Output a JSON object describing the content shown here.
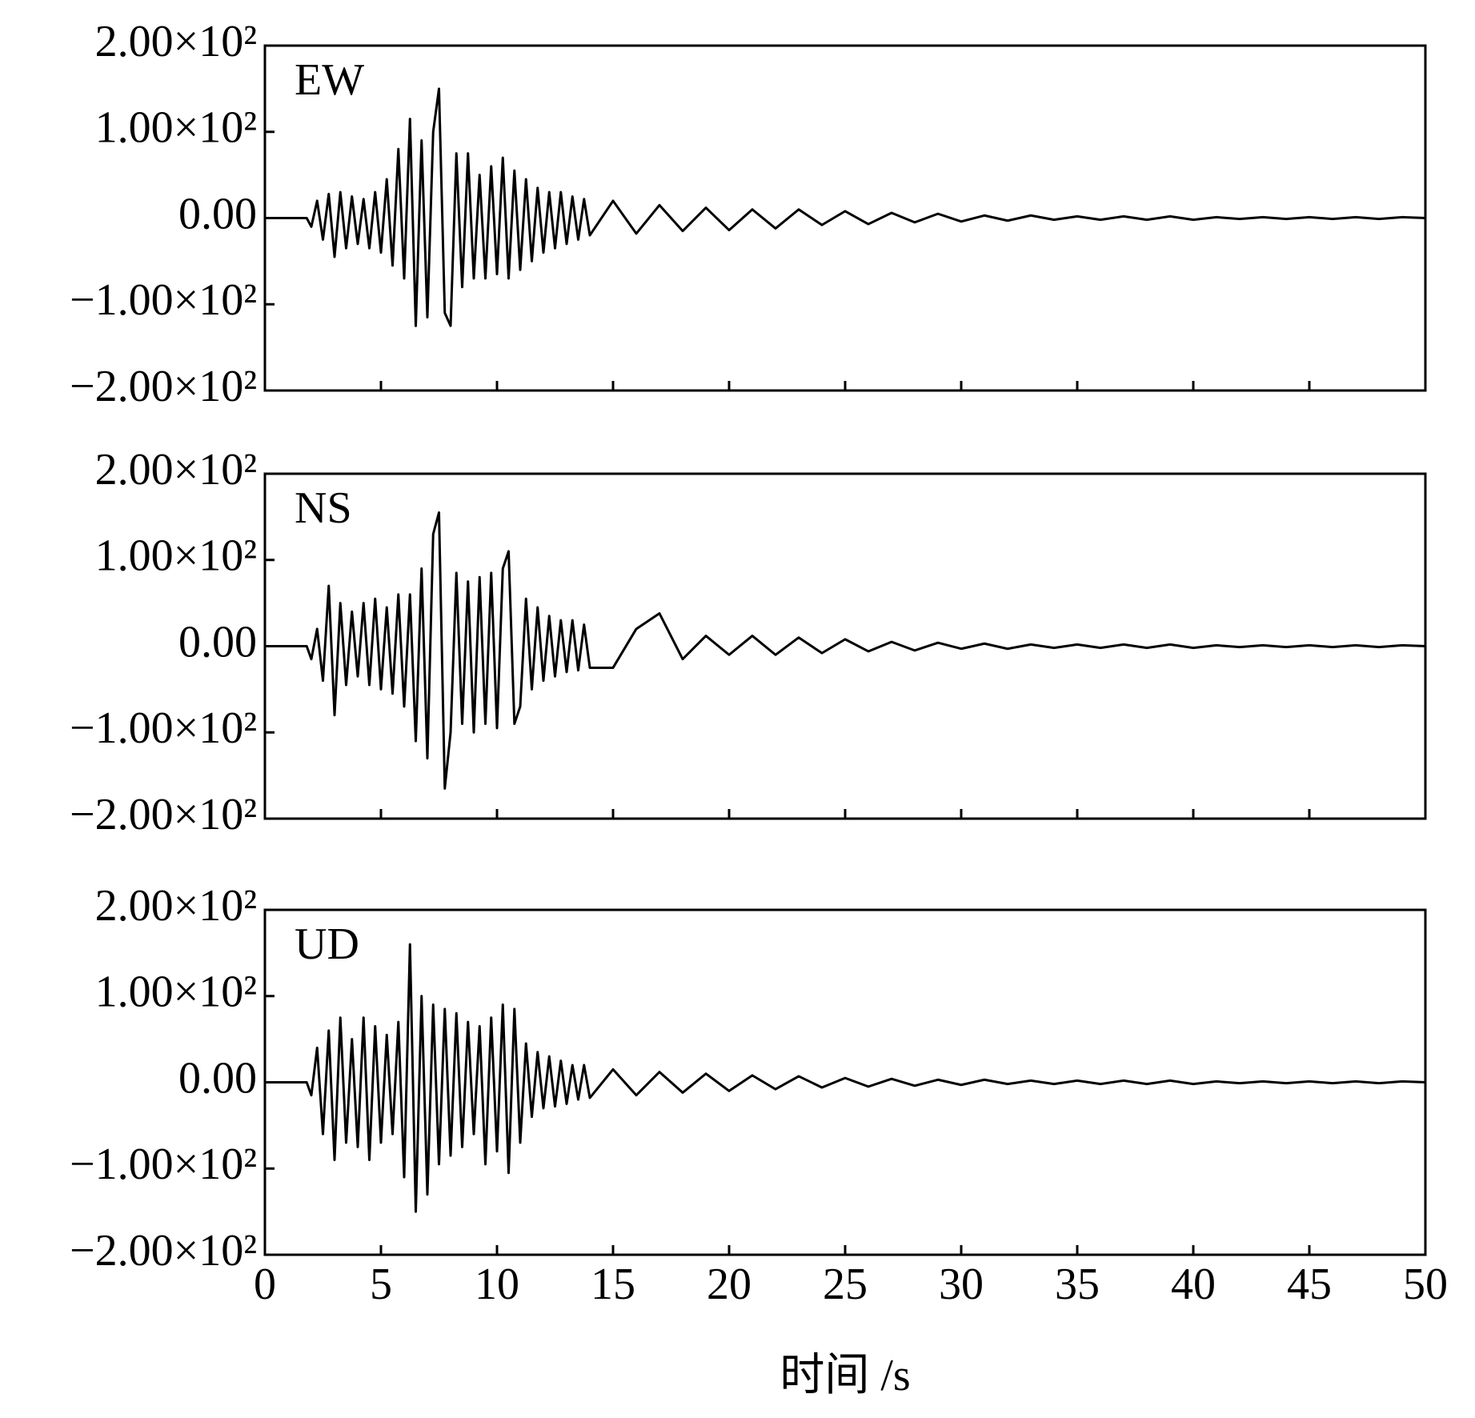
{
  "chart_data": [
    {
      "type": "line",
      "label": "EW",
      "color": "#000000",
      "x": [
        0,
        1.8,
        2,
        2.25,
        2.5,
        2.75,
        3,
        3.25,
        3.5,
        3.75,
        4,
        4.25,
        4.5,
        4.75,
        5,
        5.25,
        5.5,
        5.75,
        6,
        6.25,
        6.5,
        6.75,
        7,
        7.25,
        7.5,
        7.75,
        8,
        8.25,
        8.5,
        8.75,
        9,
        9.25,
        9.5,
        9.75,
        10,
        10.25,
        10.5,
        10.75,
        11,
        11.25,
        11.5,
        11.75,
        12,
        12.25,
        12.5,
        12.75,
        13,
        13.25,
        13.5,
        13.75,
        14,
        15,
        16,
        17,
        18,
        19,
        20,
        21,
        22,
        23,
        24,
        25,
        26,
        27,
        28,
        29,
        30,
        31,
        32,
        33,
        34,
        35,
        36,
        37,
        38,
        39,
        40,
        41,
        42,
        43,
        44,
        45,
        46,
        47,
        48,
        49,
        50
      ],
      "values": [
        0,
        0,
        -10,
        20,
        -25,
        28,
        -45,
        30,
        -35,
        25,
        -30,
        22,
        -35,
        30,
        -40,
        45,
        -55,
        80,
        -70,
        115,
        -125,
        90,
        -115,
        100,
        150,
        -110,
        -125,
        75,
        -80,
        75,
        -70,
        50,
        -70,
        60,
        -65,
        70,
        -70,
        55,
        -60,
        45,
        -50,
        35,
        -40,
        30,
        -35,
        30,
        -30,
        25,
        -25,
        22,
        -20,
        20,
        -18,
        15,
        -15,
        12,
        -14,
        10,
        -12,
        10,
        -8,
        8,
        -7,
        6,
        -5,
        5,
        -4,
        3,
        -3,
        3,
        -2,
        2,
        -2,
        2,
        -2,
        2,
        -2,
        1,
        -1,
        1,
        -1,
        1,
        -1,
        1,
        -1,
        1,
        0
      ],
      "xlim": [
        0,
        50
      ],
      "xticks": [
        0,
        5,
        10,
        15,
        20,
        25,
        30,
        35,
        40,
        45,
        50
      ],
      "ylim": [
        -200,
        200
      ],
      "yticks": [
        {
          "value": -200,
          "label": "−2.00×10²"
        },
        {
          "value": -100,
          "label": "−1.00×10²"
        },
        {
          "value": 0,
          "label": "0.00"
        },
        {
          "value": 100,
          "label": "1.00×10²"
        },
        {
          "value": 200,
          "label": "2.00×10²"
        }
      ]
    },
    {
      "type": "line",
      "label": "NS",
      "color": "#000000",
      "x": [
        0,
        1.8,
        2,
        2.25,
        2.5,
        2.75,
        3,
        3.25,
        3.5,
        3.75,
        4,
        4.25,
        4.5,
        4.75,
        5,
        5.25,
        5.5,
        5.75,
        6,
        6.25,
        6.5,
        6.75,
        7,
        7.25,
        7.5,
        7.75,
        8,
        8.25,
        8.5,
        8.75,
        9,
        9.25,
        9.5,
        9.75,
        10,
        10.25,
        10.5,
        10.75,
        11,
        11.25,
        11.5,
        11.75,
        12,
        12.25,
        12.5,
        12.75,
        13,
        13.25,
        13.5,
        13.75,
        14,
        15,
        16,
        17,
        18,
        19,
        20,
        21,
        22,
        23,
        24,
        25,
        26,
        27,
        28,
        29,
        30,
        31,
        32,
        33,
        34,
        35,
        36,
        37,
        38,
        39,
        40,
        41,
        42,
        43,
        44,
        45,
        46,
        47,
        48,
        49,
        50
      ],
      "values": [
        0,
        0,
        -15,
        20,
        -40,
        70,
        -80,
        50,
        -45,
        40,
        -35,
        50,
        -45,
        55,
        -50,
        45,
        -55,
        60,
        -70,
        60,
        -110,
        90,
        -130,
        130,
        155,
        -165,
        -100,
        85,
        -90,
        75,
        -100,
        80,
        -90,
        85,
        -95,
        90,
        110,
        -90,
        -70,
        55,
        -50,
        45,
        -40,
        35,
        -35,
        30,
        -30,
        30,
        -28,
        25,
        -25,
        -25,
        20,
        38,
        -15,
        12,
        -10,
        12,
        -10,
        10,
        -8,
        8,
        -6,
        5,
        -5,
        4,
        -3,
        3,
        -3,
        2,
        -2,
        2,
        -2,
        2,
        -2,
        2,
        -2,
        1,
        -1,
        1,
        -1,
        1,
        -1,
        1,
        -1,
        1,
        0
      ],
      "xlim": [
        0,
        50
      ],
      "xticks": [
        0,
        5,
        10,
        15,
        20,
        25,
        30,
        35,
        40,
        45,
        50
      ],
      "ylim": [
        -200,
        200
      ],
      "yticks": [
        {
          "value": -200,
          "label": "−2.00×10²"
        },
        {
          "value": -100,
          "label": "−1.00×10²"
        },
        {
          "value": 0,
          "label": "0.00"
        },
        {
          "value": 100,
          "label": "1.00×10²"
        },
        {
          "value": 200,
          "label": "2.00×10²"
        }
      ]
    },
    {
      "type": "line",
      "label": "UD",
      "color": "#000000",
      "xlabel": "时间 /s",
      "x": [
        0,
        1.8,
        2,
        2.25,
        2.5,
        2.75,
        3,
        3.25,
        3.5,
        3.75,
        4,
        4.25,
        4.5,
        4.75,
        5,
        5.25,
        5.5,
        5.75,
        6,
        6.25,
        6.5,
        6.75,
        7,
        7.25,
        7.5,
        7.75,
        8,
        8.25,
        8.5,
        8.75,
        9,
        9.25,
        9.5,
        9.75,
        10,
        10.25,
        10.5,
        10.75,
        11,
        11.25,
        11.5,
        11.75,
        12,
        12.25,
        12.5,
        12.75,
        13,
        13.25,
        13.5,
        13.75,
        14,
        15,
        16,
        17,
        18,
        19,
        20,
        21,
        22,
        23,
        24,
        25,
        26,
        27,
        28,
        29,
        30,
        31,
        32,
        33,
        34,
        35,
        36,
        37,
        38,
        39,
        40,
        41,
        42,
        43,
        44,
        45,
        46,
        47,
        48,
        49,
        50
      ],
      "values": [
        0,
        0,
        -15,
        40,
        -60,
        60,
        -90,
        75,
        -70,
        50,
        -75,
        75,
        -90,
        65,
        -70,
        55,
        -60,
        70,
        -110,
        160,
        -150,
        100,
        -130,
        90,
        -95,
        85,
        -85,
        80,
        -75,
        70,
        -60,
        65,
        -95,
        75,
        -80,
        90,
        -105,
        85,
        -70,
        45,
        -40,
        35,
        -30,
        30,
        -28,
        25,
        -25,
        20,
        -20,
        20,
        -18,
        15,
        -15,
        12,
        -12,
        10,
        -10,
        8,
        -8,
        7,
        -6,
        5,
        -5,
        4,
        -4,
        3,
        -3,
        3,
        -2,
        2,
        -2,
        2,
        -2,
        2,
        -2,
        2,
        -2,
        1,
        -1,
        1,
        -1,
        1,
        -1,
        1,
        -1,
        1,
        0
      ],
      "xlim": [
        0,
        50
      ],
      "xticks": [
        0,
        5,
        10,
        15,
        20,
        25,
        30,
        35,
        40,
        45,
        50
      ],
      "ylim": [
        -200,
        200
      ],
      "yticks": [
        {
          "value": -200,
          "label": "−2.00×10²"
        },
        {
          "value": -100,
          "label": "−1.00×10²"
        },
        {
          "value": 0,
          "label": "0.00"
        },
        {
          "value": 100,
          "label": "1.00×10²"
        },
        {
          "value": 200,
          "label": "2.00×10²"
        }
      ]
    }
  ]
}
